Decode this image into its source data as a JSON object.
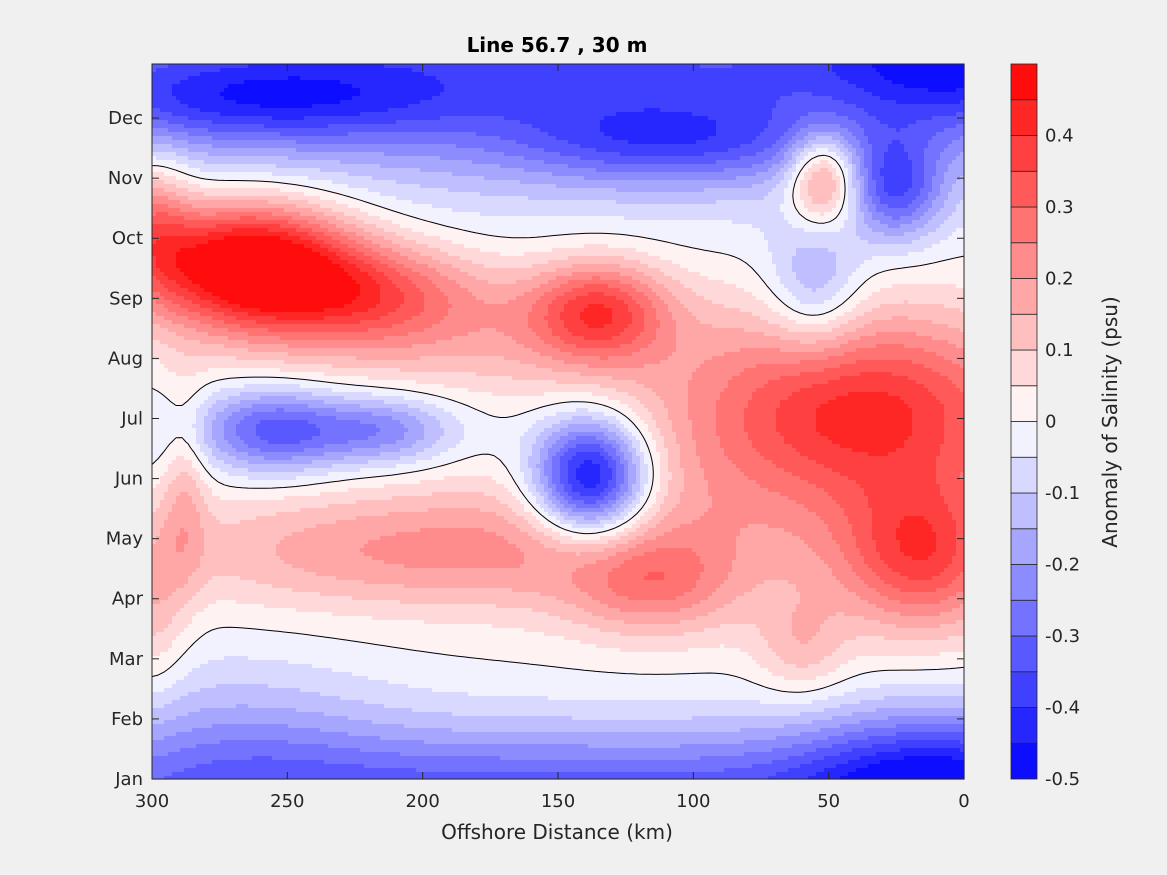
{
  "chart_data": {
    "type": "contour",
    "title": "Line 56.7 , 30 m",
    "xlabel": "Offshore Distance (km)",
    "ylabel": "",
    "colorbar_label": "Anomaly of Salinity (psu)",
    "xlim": [
      300,
      0
    ],
    "x_reversed": true,
    "x_ticks": [
      "300",
      "250",
      "200",
      "150",
      "100",
      "50",
      "0"
    ],
    "x_tick_values": [
      300,
      250,
      200,
      150,
      100,
      50,
      0
    ],
    "y_ticks": [
      "Jan",
      "Feb",
      "Mar",
      "Apr",
      "May",
      "Jun",
      "Jul",
      "Aug",
      "Sep",
      "Oct",
      "Nov",
      "Dec"
    ],
    "y_tick_months": [
      0,
      1,
      2,
      3,
      4,
      5,
      6,
      7,
      8,
      9,
      10,
      11
    ],
    "ylim_months": [
      0,
      11.9
    ],
    "clim": [
      -0.5,
      0.5
    ],
    "level_step": 0.05,
    "zero_contour": true,
    "colorbar_ticks": [
      "0.4",
      "0.3",
      "0.2",
      "0.1",
      "0",
      "-0.1",
      "-0.2",
      "-0.3",
      "-0.4",
      "-0.5"
    ],
    "colorbar_tick_values": [
      0.4,
      0.3,
      0.2,
      0.1,
      0,
      -0.1,
      -0.2,
      -0.3,
      -0.4,
      -0.5
    ],
    "colormap": {
      "negative": "#0000ff",
      "zero": "#ffffff",
      "positive": "#ff0000"
    },
    "field_features": [
      {
        "x": 265,
        "month": 8.6,
        "amp": 0.55,
        "sx": 28,
        "sy": 0.75
      },
      {
        "x": 220,
        "month": 8.1,
        "amp": 0.25,
        "sx": 30,
        "sy": 0.6
      },
      {
        "x": 135,
        "month": 7.8,
        "amp": 0.32,
        "sx": 18,
        "sy": 0.6
      },
      {
        "x": 190,
        "month": 7.4,
        "amp": 0.12,
        "sx": 60,
        "sy": 0.7
      },
      {
        "x": 35,
        "month": 6.2,
        "amp": 0.35,
        "sx": 45,
        "sy": 1.1
      },
      {
        "x": 15,
        "month": 3.7,
        "amp": 0.32,
        "sx": 22,
        "sy": 0.9
      },
      {
        "x": 80,
        "month": 5.0,
        "amp": 0.12,
        "sx": 70,
        "sy": 1.5
      },
      {
        "x": 200,
        "month": 3.8,
        "amp": 0.2,
        "sx": 70,
        "sy": 0.7
      },
      {
        "x": 115,
        "month": 3.2,
        "amp": 0.18,
        "sx": 22,
        "sy": 0.6
      },
      {
        "x": 60,
        "month": 2.2,
        "amp": 0.12,
        "sx": 12,
        "sy": 0.6
      },
      {
        "x": 288,
        "month": 4.8,
        "amp": 0.12,
        "sx": 6,
        "sy": 1.2
      },
      {
        "x": 300,
        "month": 2.8,
        "amp": 0.12,
        "sx": 8,
        "sy": 1.0
      },
      {
        "x": 300,
        "month": 9.3,
        "amp": 0.2,
        "sx": 10,
        "sy": 0.8
      },
      {
        "x": 138,
        "month": 5.0,
        "amp": -0.55,
        "sx": 15,
        "sy": 0.7
      },
      {
        "x": 255,
        "month": 5.8,
        "amp": -0.25,
        "sx": 18,
        "sy": 0.5
      },
      {
        "x": 215,
        "month": 5.8,
        "amp": -0.18,
        "sx": 18,
        "sy": 0.4
      },
      {
        "x": 240,
        "month": 5.8,
        "amp": -0.08,
        "sx": 60,
        "sy": 0.5
      },
      {
        "x": 150,
        "month": 12.0,
        "amp": -0.35,
        "sx": 200,
        "sy": 1.4
      },
      {
        "x": 260,
        "month": 11.3,
        "amp": -0.2,
        "sx": 50,
        "sy": 0.5
      },
      {
        "x": 110,
        "month": 10.6,
        "amp": -0.2,
        "sx": 40,
        "sy": 0.5
      },
      {
        "x": 25,
        "month": 9.8,
        "amp": -0.28,
        "sx": 12,
        "sy": 0.6
      },
      {
        "x": 55,
        "month": 8.2,
        "amp": -0.18,
        "sx": 12,
        "sy": 0.8
      },
      {
        "x": 0,
        "month": 12.0,
        "amp": -0.25,
        "sx": 35,
        "sy": 0.8
      },
      {
        "x": 52,
        "month": 10.0,
        "amp": 0.32,
        "sx": 9,
        "sy": 0.55
      },
      {
        "x": 150,
        "month": -0.4,
        "amp": -0.35,
        "sx": 200,
        "sy": 0.9
      },
      {
        "x": 10,
        "month": -0.1,
        "amp": -0.3,
        "sx": 35,
        "sy": 0.9
      },
      {
        "x": 270,
        "month": 0.8,
        "amp": -0.1,
        "sx": 40,
        "sy": 1.0
      }
    ]
  }
}
